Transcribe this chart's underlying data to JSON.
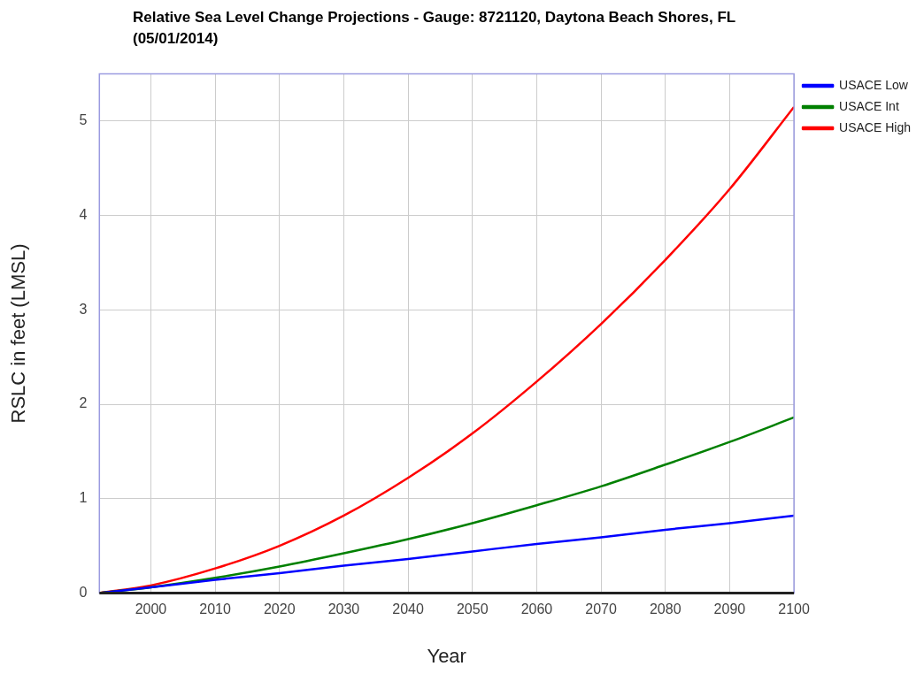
{
  "chart_data": {
    "type": "line",
    "title": "Relative Sea Level Change Projections - Gauge: 8721120, Daytona Beach Shores, FL (05/01/2014)",
    "xlabel": "Year",
    "ylabel": "RSLC in feet (LMSL)",
    "x": [
      1992,
      2000,
      2010,
      2020,
      2030,
      2040,
      2050,
      2060,
      2070,
      2080,
      2090,
      2100
    ],
    "series": [
      {
        "name": "USACE Low",
        "color": "#0000ff",
        "values": [
          0,
          0.06,
          0.14,
          0.21,
          0.29,
          0.36,
          0.44,
          0.52,
          0.59,
          0.67,
          0.74,
          0.82
        ]
      },
      {
        "name": "USACE Int",
        "color": "#008000",
        "values": [
          0,
          0.06,
          0.16,
          0.28,
          0.42,
          0.57,
          0.74,
          0.93,
          1.13,
          1.36,
          1.6,
          1.86
        ]
      },
      {
        "name": "USACE High",
        "color": "#ff0000",
        "values": [
          0,
          0.08,
          0.26,
          0.5,
          0.82,
          1.22,
          1.69,
          2.24,
          2.85,
          3.53,
          4.28,
          5.15
        ]
      }
    ],
    "xlim": [
      1992,
      2100
    ],
    "xticks": [
      2000,
      2010,
      2020,
      2030,
      2040,
      2050,
      2060,
      2070,
      2080,
      2090,
      2100
    ],
    "ylim": [
      0,
      5.5
    ],
    "yticks": [
      0,
      1,
      2,
      3,
      4,
      5
    ],
    "grid": true,
    "legend": "top right",
    "marker": "none",
    "line_style": "solid"
  }
}
